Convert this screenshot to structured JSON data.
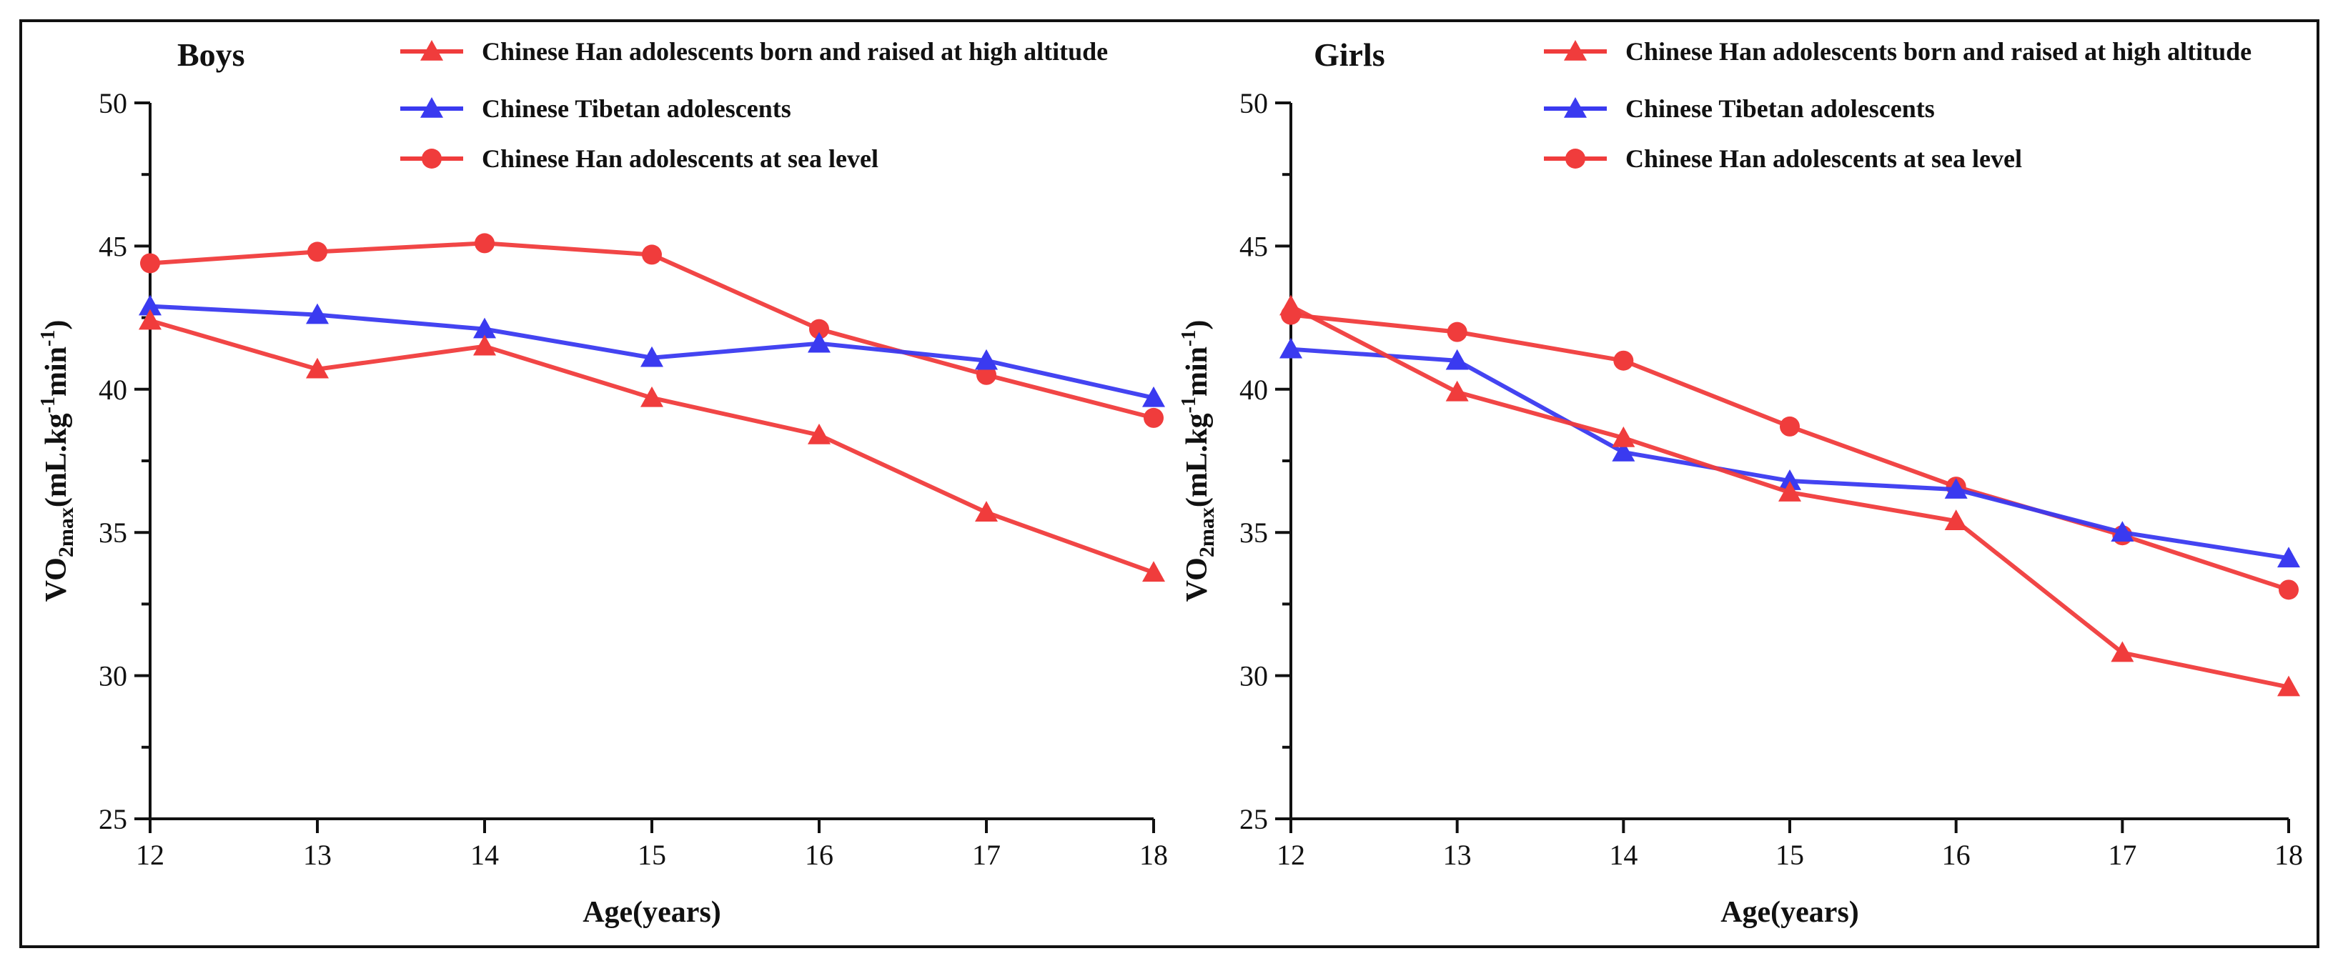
{
  "chart_data": [
    {
      "type": "line",
      "title": "Boys",
      "xlabel": "Age(years)",
      "ylabel": "VO2max(mL.kg-1min-1)",
      "ylabel_parts": {
        "main": "VO",
        "sub": "2max",
        "unit_open": "(mL.kg",
        "sup1": "-1",
        "mid": "min",
        "sup2": "-1",
        "close": ")"
      },
      "x": [
        12,
        13,
        14,
        15,
        16,
        17,
        18
      ],
      "xlim": [
        12,
        18
      ],
      "ylim": [
        25,
        50
      ],
      "yticks": [
        25,
        30,
        35,
        40,
        45,
        50
      ],
      "legend_position": "top",
      "series": [
        {
          "name": "Chinese Han adolescents born and raised at high altitude",
          "marker": "triangle",
          "color": "#f03c3c",
          "values": [
            42.4,
            40.7,
            41.5,
            39.7,
            38.4,
            35.7,
            33.6
          ]
        },
        {
          "name": "Chinese Tibetan adolescents",
          "marker": "triangle",
          "color": "#3a3af0",
          "values": [
            42.9,
            42.6,
            42.1,
            41.1,
            41.6,
            41.0,
            39.7
          ]
        },
        {
          "name": "Chinese Han adolescents at sea level",
          "marker": "circle",
          "color": "#f03c3c",
          "values": [
            44.4,
            44.8,
            45.1,
            44.7,
            42.1,
            40.5,
            39.0
          ]
        }
      ]
    },
    {
      "type": "line",
      "title": "Girls",
      "xlabel": "Age(years)",
      "ylabel": "VO2max(mL.kg-1min-1)",
      "ylabel_parts": {
        "main": "VO",
        "sub": "2max",
        "unit_open": "(mL.kg",
        "sup1": "-1",
        "mid": "min",
        "sup2": "-1",
        "close": ")"
      },
      "x": [
        12,
        13,
        14,
        15,
        16,
        17,
        18
      ],
      "xlim": [
        12,
        18
      ],
      "ylim": [
        25,
        50
      ],
      "yticks": [
        25,
        30,
        35,
        40,
        45,
        50
      ],
      "legend_position": "top",
      "series": [
        {
          "name": "Chinese Han adolescents born and raised at high altitude",
          "marker": "triangle",
          "color": "#f03c3c",
          "values": [
            42.9,
            39.9,
            38.3,
            36.4,
            35.4,
            30.8,
            29.6
          ]
        },
        {
          "name": "Chinese Tibetan adolescents",
          "marker": "triangle",
          "color": "#3a3af0",
          "values": [
            41.4,
            41.0,
            37.8,
            36.8,
            36.5,
            35.0,
            34.1
          ]
        },
        {
          "name": "Chinese Han adolescents at sea level",
          "marker": "circle",
          "color": "#f03c3c",
          "values": [
            42.6,
            42.0,
            41.0,
            38.7,
            36.6,
            34.9,
            33.0
          ]
        }
      ]
    }
  ]
}
